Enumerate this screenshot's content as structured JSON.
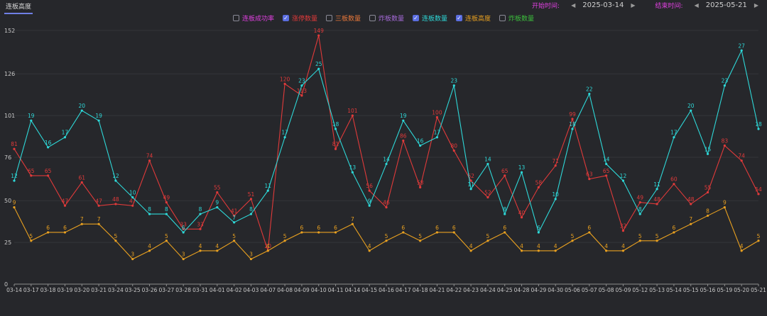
{
  "header": {
    "tab_label": "连板高度",
    "start_label": "开始时间:",
    "start_date": "2025-03-14",
    "end_label": "结束时间:",
    "end_date": "2025-05-21"
  },
  "legend": [
    {
      "label": "连板成功率",
      "checked": false,
      "color": "#e040e0"
    },
    {
      "label": "涨停数量",
      "checked": true,
      "color": "#e03a3a"
    },
    {
      "label": "三板数量",
      "checked": false,
      "color": "#e8773a"
    },
    {
      "label": "炸板数量",
      "checked": false,
      "color": "#a56ad8"
    },
    {
      "label": "连板数量",
      "checked": true,
      "color": "#2ed8d8"
    },
    {
      "label": "连板高度",
      "checked": true,
      "color": "#e8a020"
    },
    {
      "label": "炸板数量",
      "checked": false,
      "color": "#3cbf3c"
    }
  ],
  "chart_data": {
    "type": "line",
    "ylim": [
      0,
      152
    ],
    "yticks": [
      0,
      25,
      50,
      76,
      101,
      126,
      152
    ],
    "categories": [
      "03-14",
      "03-17",
      "03-18",
      "03-19",
      "03-20",
      "03-21",
      "03-24",
      "03-25",
      "03-26",
      "03-27",
      "03-28",
      "03-31",
      "04-01",
      "04-02",
      "04-03",
      "04-07",
      "04-08",
      "04-09",
      "04-10",
      "04-11",
      "04-14",
      "04-15",
      "04-16",
      "04-17",
      "04-18",
      "04-21",
      "04-22",
      "04-23",
      "04-24",
      "04-25",
      "04-28",
      "04-29",
      "04-30",
      "05-06",
      "05-07",
      "05-08",
      "05-09",
      "05-12",
      "05-13",
      "05-14",
      "05-15",
      "05-16",
      "05-19",
      "05-20",
      "05-21"
    ],
    "series": [
      {
        "name": "涨停数量",
        "color": "#e03a3a",
        "values": [
          81,
          65,
          65,
          47,
          61,
          47,
          48,
          47,
          74,
          49,
          33,
          33,
          55,
          41,
          51,
          20,
          120,
          113,
          149,
          81,
          101,
          56,
          46,
          86,
          58,
          100,
          80,
          62,
          52,
          65,
          40,
          58,
          71,
          99,
          63,
          65,
          32,
          49,
          48,
          60,
          48,
          55,
          83,
          74,
          54
        ],
        "labels": [
          "81",
          "65",
          "65",
          "47",
          "61",
          "47",
          "48",
          "47",
          "74",
          "49",
          "33",
          "33",
          "55",
          "41",
          "51",
          "20",
          "120",
          "113",
          "149",
          "81",
          "101",
          "56",
          "46",
          "86",
          "58",
          "100",
          "80",
          "62",
          "52",
          "65",
          "40",
          "58",
          "71",
          "99",
          "63",
          "65",
          "32",
          "49",
          "48",
          "60",
          "48",
          "55",
          "83",
          "74",
          "54"
        ]
      },
      {
        "name": "连板数量",
        "color": "#2ed8d8",
        "values": [
          62,
          98,
          82,
          88,
          104,
          98,
          62,
          52,
          42,
          42,
          31,
          42,
          46,
          37,
          42,
          56,
          88,
          119,
          129,
          93,
          67,
          47,
          72,
          98,
          83,
          88,
          119,
          57,
          72,
          42,
          67,
          31,
          51,
          93,
          114,
          72,
          62,
          42,
          57,
          88,
          104,
          78,
          119,
          140,
          93
        ],
        "labels": [
          "12",
          "19",
          "16",
          "17",
          "20",
          "19",
          "12",
          "10",
          "8",
          "8",
          "6",
          "8",
          "9",
          "7",
          "8",
          "11",
          "17",
          "23",
          "25",
          "18",
          "13",
          "9",
          "14",
          "19",
          "16",
          "17",
          "23",
          "11",
          "14",
          "8",
          "13",
          "6",
          "10",
          "18",
          "22",
          "14",
          "12",
          "8",
          "11",
          "17",
          "20",
          "15",
          "23",
          "27",
          "18"
        ]
      },
      {
        "name": "连板高度",
        "color": "#e8a020",
        "values": [
          46,
          26,
          31,
          31,
          36,
          36,
          26,
          15,
          20,
          26,
          15,
          20,
          20,
          26,
          15,
          20,
          26,
          31,
          31,
          31,
          36,
          20,
          26,
          31,
          26,
          31,
          31,
          20,
          26,
          31,
          20,
          20,
          20,
          26,
          31,
          20,
          20,
          26,
          26,
          31,
          36,
          41,
          46,
          20,
          26
        ],
        "labels": [
          "9",
          "5",
          "6",
          "6",
          "7",
          "7",
          "5",
          "3",
          "4",
          "5",
          "3",
          "4",
          "4",
          "5",
          "3",
          "4",
          "5",
          "6",
          "6",
          "6",
          "7",
          "4",
          "5",
          "6",
          "5",
          "6",
          "6",
          "4",
          "5",
          "6",
          "4",
          "4",
          "4",
          "5",
          "6",
          "4",
          "4",
          "5",
          "5",
          "6",
          "7",
          "8",
          "9",
          "4",
          "5"
        ]
      }
    ]
  }
}
